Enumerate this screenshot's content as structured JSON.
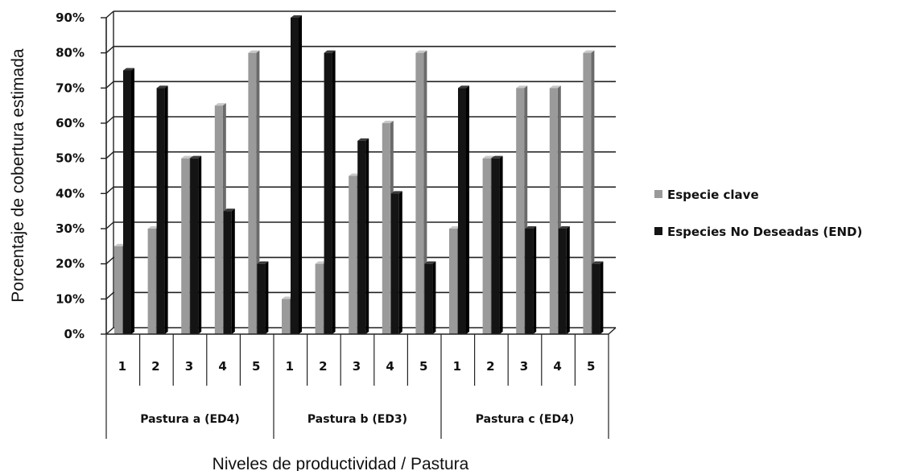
{
  "chart_data": {
    "type": "bar",
    "title": "",
    "xlabel": "Niveles de productividad / Pastura",
    "ylabel": "Porcentaje de cobertura estimada",
    "ylim": [
      0,
      90
    ],
    "yticks": [
      0,
      10,
      20,
      30,
      40,
      50,
      60,
      70,
      80,
      90
    ],
    "ytick_labels": [
      "0%",
      "10%",
      "20%",
      "30%",
      "40%",
      "50%",
      "60%",
      "70%",
      "80%",
      "90%"
    ],
    "grid": true,
    "legend_position": "right",
    "groups": [
      {
        "label": "Pastura a (ED4)",
        "categories": [
          "1",
          "2",
          "3",
          "4",
          "5"
        ]
      },
      {
        "label": "Pastura b (ED3)",
        "categories": [
          "1",
          "2",
          "3",
          "4",
          "5"
        ]
      },
      {
        "label": "Pastura c (ED4)",
        "categories": [
          "1",
          "2",
          "3",
          "4",
          "5"
        ]
      }
    ],
    "series": [
      {
        "name": "Especie clave",
        "color": "#9a9a9a",
        "values": [
          25,
          30,
          50,
          65,
          80,
          10,
          20,
          45,
          60,
          80,
          30,
          50,
          70,
          70,
          80
        ]
      },
      {
        "name": "Especies No Deseadas (END)",
        "color": "#141414",
        "values": [
          75,
          70,
          50,
          35,
          20,
          90,
          80,
          55,
          40,
          20,
          70,
          50,
          30,
          30,
          20
        ]
      }
    ]
  }
}
